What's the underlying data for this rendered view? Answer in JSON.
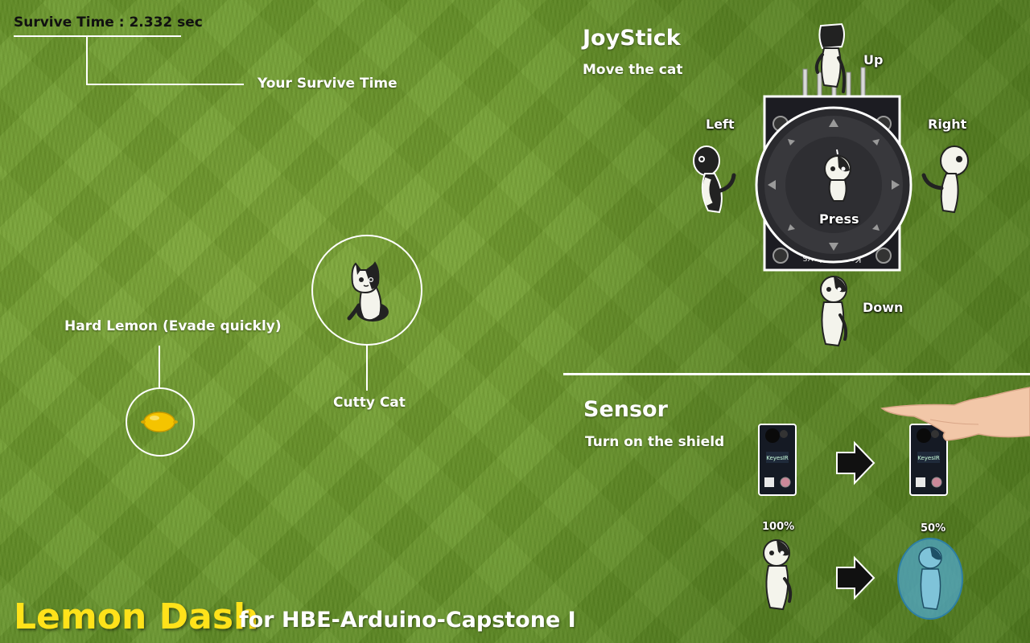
{
  "hud": {
    "survive_time": "Survive Time : 2.332 sec",
    "survive_callout": "Your Survive Time"
  },
  "game": {
    "lemon_label": "Hard Lemon (Evade quickly)",
    "cat_label": "Cutty Cat"
  },
  "joystick": {
    "title": "JoyStick",
    "subtitle": "Move the cat",
    "up": "Up",
    "down": "Down",
    "left": "Left",
    "right": "Right",
    "press": "Press",
    "board_text": "Keyes_SJoys"
  },
  "sensor": {
    "title": "Sensor",
    "subtitle": "Turn on the shield",
    "shield_full": "100%",
    "shield_half": "50%",
    "board_text": "KeyesIR"
  },
  "footer": {
    "title": "Lemon Dash",
    "subtitle": "for HBE-Arduino-Capstone I"
  },
  "colors": {
    "title_yellow": "#ffe21a",
    "grass": "#6c9a2a",
    "lemon": "#f5c400",
    "shield": "#4fa6c9"
  },
  "icons": [
    "cat-icon",
    "lemon-icon",
    "joystick-module-icon",
    "ir-sensor-icon",
    "arrow-right-icon",
    "hand-icon",
    "shielded-cat-icon"
  ]
}
